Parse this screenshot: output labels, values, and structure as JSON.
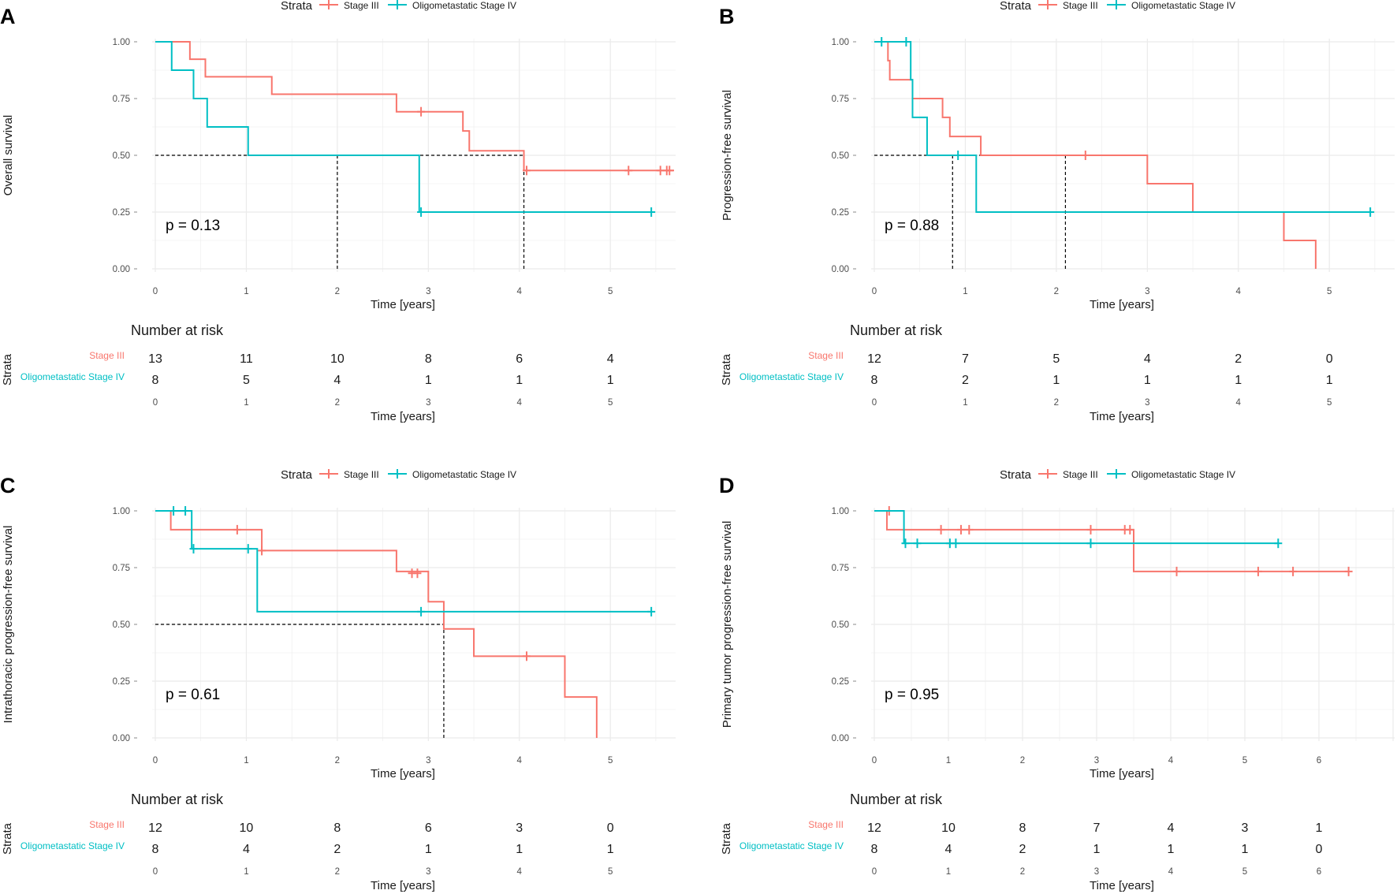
{
  "figure": {
    "legend_title": "Strata",
    "x_axis_label": "Time [years]",
    "risk_title": "Number at risk",
    "risk_side_label": "Strata"
  },
  "strata": [
    {
      "name": "Stage III",
      "color": "#F8766D"
    },
    {
      "name": "Oligometastatic Stage IV",
      "color": "#00BFC4"
    }
  ],
  "chart_data": [
    {
      "panel": "A",
      "type": "kaplan-meier",
      "ylabel": "Overall survival",
      "xlabel": "Time [years]",
      "xlim": [
        0,
        5.7
      ],
      "xticks": [
        0,
        1,
        2,
        3,
        4,
        5
      ],
      "ylim": [
        0,
        1
      ],
      "yticks": [
        "0.00",
        "0.25",
        "0.50",
        "0.75",
        "1.00"
      ],
      "pvalue": "p = 0.13",
      "series": [
        {
          "name": "Stage III",
          "steps": [
            [
              0,
              1
            ],
            [
              0.38,
              0.923
            ],
            [
              0.55,
              0.846
            ],
            [
              1.28,
              0.769
            ],
            [
              2.65,
              0.692
            ],
            [
              3.38,
              0.607
            ],
            [
              3.45,
              0.52
            ],
            [
              4.05,
              0.433
            ],
            [
              5.7,
              0.433
            ]
          ],
          "censors": [
            [
              2.92,
              0.692
            ],
            [
              4.08,
              0.433
            ],
            [
              5.2,
              0.433
            ],
            [
              5.55,
              0.433
            ],
            [
              5.62,
              0.433
            ],
            [
              5.65,
              0.433
            ]
          ]
        },
        {
          "name": "Oligometastatic Stage IV",
          "steps": [
            [
              0,
              1
            ],
            [
              0.18,
              0.875
            ],
            [
              0.42,
              0.75
            ],
            [
              0.57,
              0.625
            ],
            [
              1.02,
              0.5
            ],
            [
              2.9,
              0.25
            ],
            [
              5.45,
              0.25
            ]
          ],
          "censors": [
            [
              2.92,
              0.25
            ],
            [
              5.45,
              0.25
            ]
          ]
        }
      ],
      "medians": [
        2.0,
        4.05
      ],
      "median_line_end": 4.05,
      "risk_times": [
        0,
        1,
        2,
        3,
        4,
        5
      ],
      "risk": [
        [
          "13",
          "11",
          "10",
          "8",
          "6",
          "4"
        ],
        [
          "8",
          "5",
          "4",
          "1",
          "1",
          "1"
        ]
      ]
    },
    {
      "panel": "B",
      "type": "kaplan-meier",
      "ylabel": "Progression-free survival",
      "xlabel": "Time [years]",
      "xlim": [
        0,
        5.7
      ],
      "xticks": [
        0,
        1,
        2,
        3,
        4,
        5
      ],
      "ylim": [
        0,
        1
      ],
      "yticks": [
        "0.00",
        "0.25",
        "0.50",
        "0.75",
        "1.00"
      ],
      "pvalue": "p = 0.88",
      "series": [
        {
          "name": "Stage III",
          "steps": [
            [
              0,
              1
            ],
            [
              0.15,
              0.917
            ],
            [
              0.17,
              0.833
            ],
            [
              0.42,
              0.75
            ],
            [
              0.75,
              0.667
            ],
            [
              0.83,
              0.583
            ],
            [
              1.17,
              0.5
            ],
            [
              3.0,
              0.375
            ],
            [
              3.5,
              0.25
            ],
            [
              4.5,
              0.125
            ],
            [
              4.85,
              0.0
            ]
          ],
          "censors": [
            [
              2.32,
              0.5
            ]
          ]
        },
        {
          "name": "Oligometastatic Stage IV",
          "steps": [
            [
              0,
              1
            ],
            [
              0.4,
              0.833
            ],
            [
              0.42,
              0.667
            ],
            [
              0.58,
              0.5
            ],
            [
              1.12,
              0.25
            ],
            [
              5.45,
              0.25
            ]
          ],
          "censors": [
            [
              0.08,
              1
            ],
            [
              0.35,
              1
            ],
            [
              0.92,
              0.5
            ],
            [
              5.45,
              0.25
            ]
          ]
        }
      ],
      "medians": [
        0.86,
        2.1
      ],
      "median_line_end": 2.1,
      "risk_times": [
        0,
        1,
        2,
        3,
        4,
        5
      ],
      "risk": [
        [
          "12",
          "7",
          "5",
          "4",
          "2",
          "0"
        ],
        [
          "8",
          "2",
          "1",
          "1",
          "1",
          "1"
        ]
      ]
    },
    {
      "panel": "C",
      "type": "kaplan-meier",
      "ylabel": "Intrathoracic progression-free survival",
      "xlabel": "Time [years]",
      "xlim": [
        0,
        5.7
      ],
      "xticks": [
        0,
        1,
        2,
        3,
        4,
        5
      ],
      "ylim": [
        0,
        1
      ],
      "yticks": [
        "0.00",
        "0.25",
        "0.50",
        "0.75",
        "1.00"
      ],
      "pvalue": "p = 0.61",
      "series": [
        {
          "name": "Stage III",
          "steps": [
            [
              0,
              1
            ],
            [
              0.17,
              0.917
            ],
            [
              1.17,
              0.825
            ],
            [
              2.65,
              0.733
            ],
            [
              3.0,
              0.6
            ],
            [
              3.17,
              0.48
            ],
            [
              3.5,
              0.36
            ],
            [
              4.5,
              0.18
            ],
            [
              4.85,
              0.0
            ]
          ],
          "censors": [
            [
              0.9,
              0.917
            ],
            [
              1.17,
              0.825
            ],
            [
              2.82,
              0.725
            ],
            [
              2.88,
              0.725
            ],
            [
              4.08,
              0.36
            ]
          ]
        },
        {
          "name": "Oligometastatic Stage IV",
          "steps": [
            [
              0,
              1
            ],
            [
              0.4,
              0.833
            ],
            [
              1.12,
              0.556
            ],
            [
              5.45,
              0.556
            ]
          ],
          "censors": [
            [
              0.2,
              1
            ],
            [
              0.33,
              1
            ],
            [
              0.42,
              0.833
            ],
            [
              1.02,
              0.833
            ],
            [
              2.92,
              0.556
            ],
            [
              5.45,
              0.556
            ]
          ]
        }
      ],
      "medians": [
        3.17
      ],
      "median_line_end": 3.17,
      "risk_times": [
        0,
        1,
        2,
        3,
        4,
        5
      ],
      "risk": [
        [
          "12",
          "10",
          "8",
          "6",
          "3",
          "0"
        ],
        [
          "8",
          "4",
          "2",
          "1",
          "1",
          "1"
        ]
      ]
    },
    {
      "panel": "D",
      "type": "kaplan-meier",
      "ylabel": "Primary tumor progression-free survival",
      "xlabel": "Time [years]",
      "xlim": [
        0,
        7.0
      ],
      "xticks": [
        0,
        1,
        2,
        3,
        4,
        5,
        6
      ],
      "ylim": [
        0,
        1
      ],
      "yticks": [
        "0.00",
        "0.25",
        "0.50",
        "0.75",
        "1.00"
      ],
      "pvalue": "p = 0.95",
      "series": [
        {
          "name": "Stage III",
          "steps": [
            [
              0,
              1
            ],
            [
              0.17,
              0.917
            ],
            [
              3.5,
              0.733
            ],
            [
              6.4,
              0.733
            ]
          ],
          "censors": [
            [
              0.2,
              1
            ],
            [
              0.9,
              0.917
            ],
            [
              1.17,
              0.917
            ],
            [
              1.28,
              0.917
            ],
            [
              2.92,
              0.917
            ],
            [
              3.38,
              0.917
            ],
            [
              3.45,
              0.917
            ],
            [
              4.08,
              0.733
            ],
            [
              5.18,
              0.733
            ],
            [
              5.65,
              0.733
            ],
            [
              6.4,
              0.733
            ]
          ]
        },
        {
          "name": "Oligometastatic Stage IV",
          "steps": [
            [
              0,
              1
            ],
            [
              0.4,
              0.857
            ],
            [
              5.45,
              0.857
            ]
          ],
          "censors": [
            [
              0.42,
              0.857
            ],
            [
              0.58,
              0.857
            ],
            [
              1.02,
              0.857
            ],
            [
              1.1,
              0.857
            ],
            [
              2.92,
              0.857
            ],
            [
              5.45,
              0.857
            ]
          ]
        }
      ],
      "medians": [],
      "median_line_end": null,
      "risk_times": [
        0,
        1,
        2,
        3,
        4,
        5,
        6
      ],
      "risk": [
        [
          "12",
          "10",
          "8",
          "7",
          "4",
          "3",
          "1"
        ],
        [
          "8",
          "4",
          "2",
          "1",
          "1",
          "1",
          "0"
        ]
      ]
    }
  ]
}
